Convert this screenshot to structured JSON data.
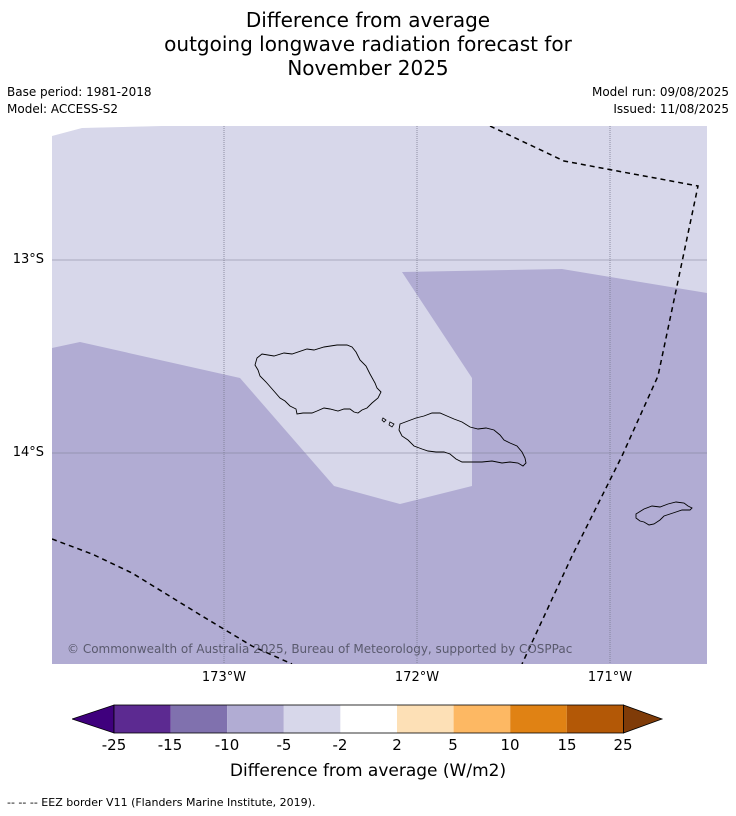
{
  "title": {
    "line1": "Difference from average",
    "line2": "outgoing longwave radiation forecast for",
    "line3": "November 2025"
  },
  "meta": {
    "base_period": "Base period: 1981-2018",
    "model": "Model: ACCESS-S2",
    "model_run": "Model run: 09/08/2025",
    "issued": "Issued: 11/08/2025"
  },
  "map": {
    "lat_labels": [
      "13°S",
      "14°S"
    ],
    "lon_labels": [
      "173°W",
      "172°W",
      "171°W"
    ],
    "copyright": "© Commonwealth of Australia 2025, Bureau of Meteorology, supported by COSPPac",
    "colors": {
      "light": "#d7d7ea",
      "medium": "#b1acd3"
    }
  },
  "colorbar": {
    "title": "Difference from average (W/m2)",
    "ticks": [
      "-25",
      "-15",
      "-10",
      "-5",
      "-2",
      "2",
      "5",
      "10",
      "15",
      "25"
    ],
    "colors": [
      "#3f007d",
      "#5c2a91",
      "#8071ae",
      "#b1acd3",
      "#d7d7ea",
      "#ffffff",
      "#fde0b6",
      "#fdb863",
      "#e08214",
      "#b35806",
      "#7f3b08"
    ]
  },
  "footnote": "--  --  -- EEZ border V11 (Flanders Marine Institute, 2019)."
}
